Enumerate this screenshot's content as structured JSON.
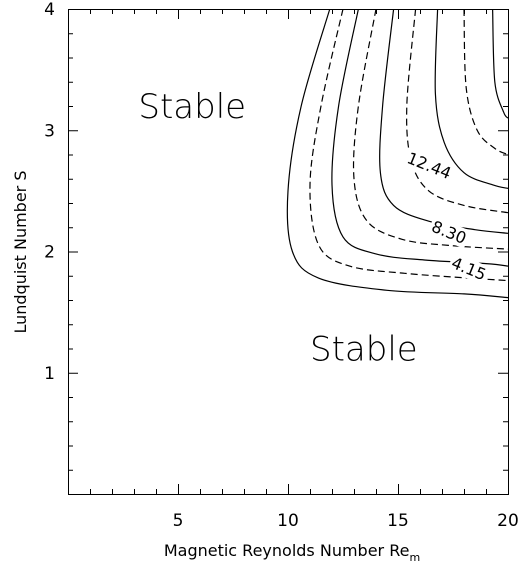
{
  "chart_data": {
    "type": "contour",
    "xlabel": "Magnetic Reynolds Number Re",
    "xlabel_subscript": "m",
    "ylabel": "Lundquist Number S",
    "xlim": [
      0,
      20
    ],
    "ylim": [
      0,
      4
    ],
    "x_ticks": [
      5,
      10,
      15,
      20
    ],
    "y_ticks": [
      1,
      2,
      3,
      4
    ],
    "region_labels": [
      {
        "text": "Stable",
        "x": 3.2,
        "y": 3.1
      },
      {
        "text": "Stable",
        "x": 11.0,
        "y": 1.1
      }
    ],
    "contour_labels": [
      {
        "text": "4.15",
        "x": 18.2,
        "y": 1.85
      },
      {
        "text": "8.30",
        "x": 17.3,
        "y": 2.15
      },
      {
        "text": "12.44",
        "x": 16.4,
        "y": 2.7
      }
    ],
    "contours": [
      {
        "style": "solid",
        "points": [
          [
            11.9,
            4.0
          ],
          [
            10.6,
            3.2
          ],
          [
            10.0,
            2.5
          ],
          [
            10.2,
            2.0
          ],
          [
            11.4,
            1.78
          ],
          [
            14.5,
            1.68
          ],
          [
            18.0,
            1.65
          ],
          [
            20.0,
            1.62
          ]
        ]
      },
      {
        "style": "dashed",
        "points": [
          [
            12.5,
            4.0
          ],
          [
            11.5,
            3.2
          ],
          [
            11.0,
            2.55
          ],
          [
            11.4,
            2.05
          ],
          [
            12.8,
            1.88
          ],
          [
            15.3,
            1.82
          ],
          [
            18.3,
            1.78
          ],
          [
            20.0,
            1.76
          ]
        ]
      },
      {
        "style": "solid",
        "points": [
          [
            13.2,
            4.0
          ],
          [
            12.3,
            3.2
          ],
          [
            12.0,
            2.55
          ],
          [
            12.5,
            2.12
          ],
          [
            14.0,
            1.98
          ],
          [
            16.2,
            1.93
          ],
          [
            19.0,
            1.9
          ],
          [
            20.0,
            1.88
          ]
        ]
      },
      {
        "style": "dashed",
        "points": [
          [
            14.0,
            4.0
          ],
          [
            13.2,
            3.2
          ],
          [
            13.0,
            2.6
          ],
          [
            13.6,
            2.25
          ],
          [
            15.2,
            2.1
          ],
          [
            17.3,
            2.05
          ],
          [
            20.0,
            2.02
          ]
        ]
      },
      {
        "style": "solid",
        "points": [
          [
            14.8,
            4.0
          ],
          [
            14.3,
            3.2
          ],
          [
            14.2,
            2.65
          ],
          [
            14.8,
            2.38
          ],
          [
            16.4,
            2.25
          ],
          [
            18.5,
            2.18
          ],
          [
            20.0,
            2.15
          ]
        ]
      },
      {
        "style": "dashed",
        "points": [
          [
            15.8,
            4.0
          ],
          [
            15.4,
            3.2
          ],
          [
            15.6,
            2.75
          ],
          [
            16.4,
            2.5
          ],
          [
            18.0,
            2.38
          ],
          [
            20.0,
            2.32
          ]
        ]
      },
      {
        "style": "solid",
        "points": [
          [
            16.8,
            4.0
          ],
          [
            16.7,
            3.3
          ],
          [
            17.1,
            2.9
          ],
          [
            18.0,
            2.65
          ],
          [
            19.3,
            2.55
          ],
          [
            20.0,
            2.52
          ]
        ]
      },
      {
        "style": "dashed",
        "points": [
          [
            18.0,
            4.0
          ],
          [
            18.1,
            3.35
          ],
          [
            18.6,
            3.0
          ],
          [
            19.4,
            2.85
          ],
          [
            20.0,
            2.8
          ]
        ]
      },
      {
        "style": "solid",
        "points": [
          [
            19.3,
            4.0
          ],
          [
            19.4,
            3.4
          ],
          [
            19.8,
            3.15
          ],
          [
            20.0,
            3.1
          ]
        ]
      }
    ]
  }
}
